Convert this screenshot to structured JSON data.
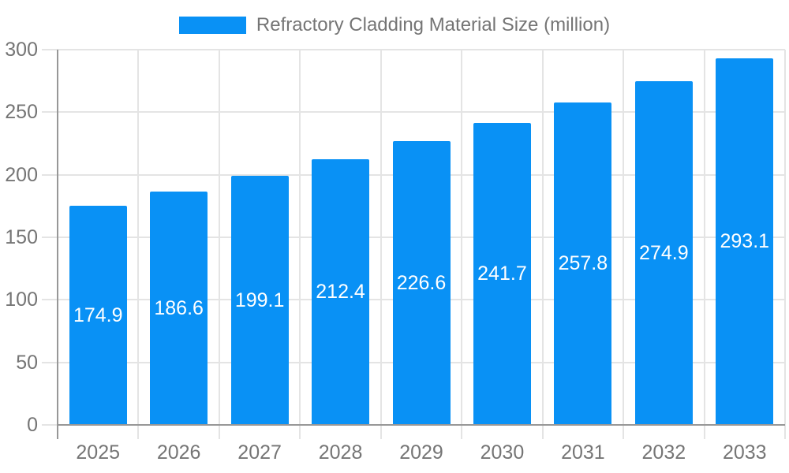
{
  "chart_data": {
    "type": "bar",
    "title": "Refractory Cladding Material Size (million)",
    "legend": {
      "label": "Refractory Cladding Material Size (million)",
      "position": "top"
    },
    "categories": [
      "2025",
      "2026",
      "2027",
      "2028",
      "2029",
      "2030",
      "2031",
      "2032",
      "2033"
    ],
    "series": [
      {
        "name": "Refractory Cladding Material Size (million)",
        "values": [
          174.9,
          186.6,
          199.1,
          212.4,
          226.6,
          241.7,
          257.8,
          274.9,
          293.1
        ]
      }
    ],
    "data_labels": [
      "174.9",
      "186.6",
      "199.1",
      "212.4",
      "226.6",
      "241.7",
      "257.8",
      "274.9",
      "293.1"
    ],
    "xlabel": "",
    "ylabel": "",
    "ylim": [
      0,
      300
    ],
    "yticks": [
      0,
      50,
      100,
      150,
      200,
      250,
      300
    ],
    "grid": true,
    "grid_horizontal": true,
    "grid_vertical": true,
    "colors": {
      "bar": "#0991f5",
      "bar_label": "#ffffff",
      "grid": "#e4e4e4",
      "axis": "#979797",
      "tick_text": "#757575",
      "legend_text": "#757575",
      "background": "#ffffff"
    }
  }
}
